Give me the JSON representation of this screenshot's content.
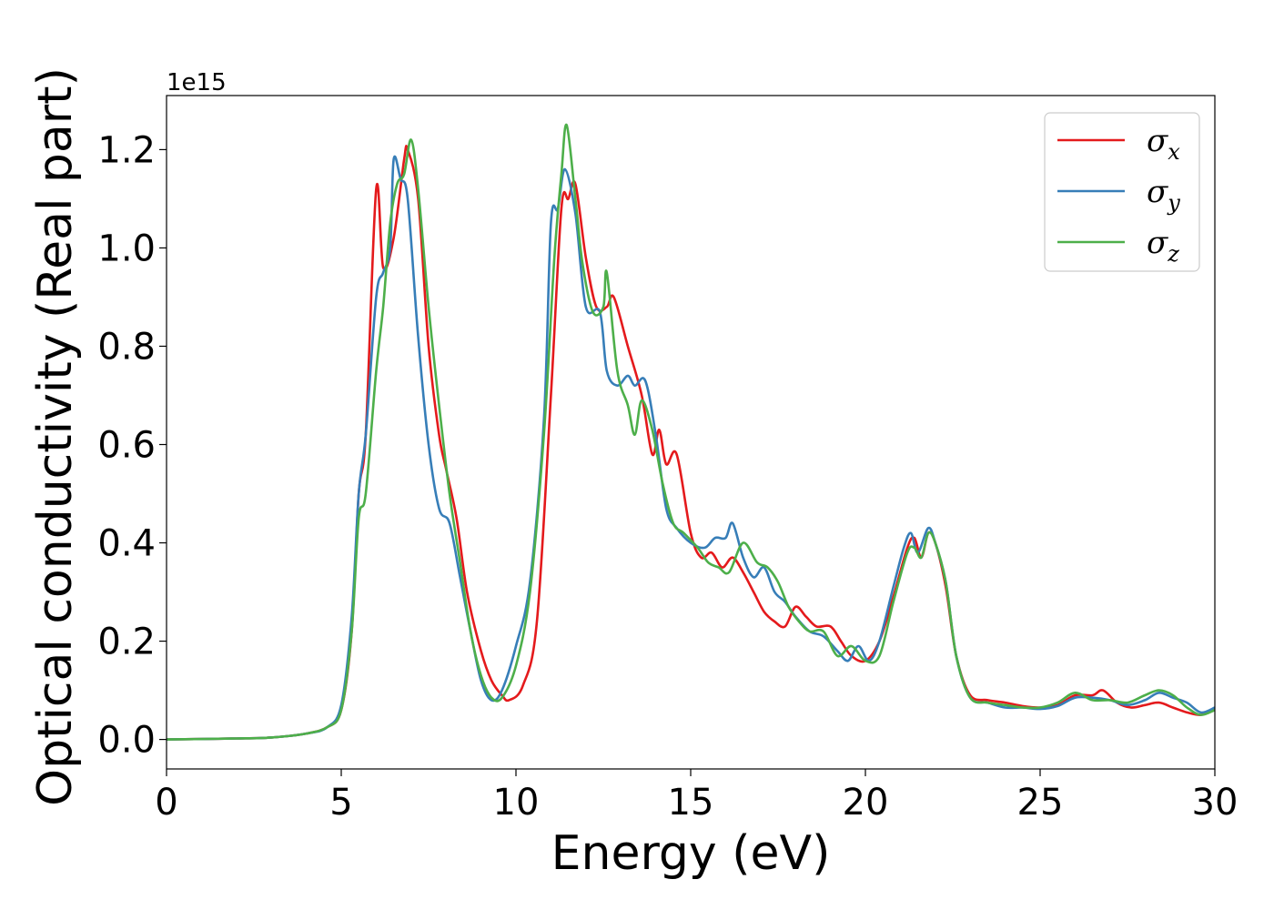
{
  "chart_data": {
    "type": "line",
    "xlabel": "Energy (eV)",
    "ylabel": "Optical conductivity (Real part)",
    "y_offset_text": "1e15",
    "xlim": [
      0,
      30
    ],
    "ylim": [
      -0.06,
      1.31
    ],
    "x_ticks": [
      0,
      5,
      10,
      15,
      20,
      25,
      30
    ],
    "x_tick_labels": [
      "0",
      "5",
      "10",
      "15",
      "20",
      "25",
      "30"
    ],
    "y_ticks": [
      0.0,
      0.2,
      0.4,
      0.6,
      0.8,
      1.0,
      1.2
    ],
    "y_tick_labels": [
      "0.0",
      "0.2",
      "0.4",
      "0.6",
      "0.8",
      "1.0",
      "1.2"
    ],
    "grid": false,
    "legend_position": "top-right",
    "series": [
      {
        "name_base": "σ",
        "name_sub": "x",
        "color": "#e41a1c",
        "points": [
          [
            0,
            0
          ],
          [
            2,
            0.002
          ],
          [
            3,
            0.004
          ],
          [
            4,
            0.012
          ],
          [
            4.6,
            0.025
          ],
          [
            5,
            0.06
          ],
          [
            5.3,
            0.22
          ],
          [
            5.5,
            0.5
          ],
          [
            5.7,
            0.62
          ],
          [
            6.0,
            1.12
          ],
          [
            6.2,
            0.96
          ],
          [
            6.5,
            1.02
          ],
          [
            6.8,
            1.18
          ],
          [
            6.9,
            1.2
          ],
          [
            7.2,
            1.1
          ],
          [
            7.5,
            0.8
          ],
          [
            7.8,
            0.62
          ],
          [
            8.0,
            0.55
          ],
          [
            8.3,
            0.45
          ],
          [
            8.6,
            0.3
          ],
          [
            9.0,
            0.18
          ],
          [
            9.3,
            0.12
          ],
          [
            9.6,
            0.09
          ],
          [
            9.8,
            0.08
          ],
          [
            10.2,
            0.11
          ],
          [
            10.6,
            0.24
          ],
          [
            11.0,
            0.7
          ],
          [
            11.3,
            1.08
          ],
          [
            11.5,
            1.1
          ],
          [
            11.7,
            1.13
          ],
          [
            12.0,
            0.98
          ],
          [
            12.3,
            0.88
          ],
          [
            12.6,
            0.88
          ],
          [
            12.8,
            0.9
          ],
          [
            13.2,
            0.8
          ],
          [
            13.6,
            0.7
          ],
          [
            13.9,
            0.58
          ],
          [
            14.1,
            0.63
          ],
          [
            14.3,
            0.56
          ],
          [
            14.6,
            0.58
          ],
          [
            15.0,
            0.42
          ],
          [
            15.3,
            0.37
          ],
          [
            15.6,
            0.38
          ],
          [
            15.9,
            0.35
          ],
          [
            16.2,
            0.37
          ],
          [
            16.5,
            0.34
          ],
          [
            16.8,
            0.3
          ],
          [
            17.1,
            0.26
          ],
          [
            17.4,
            0.24
          ],
          [
            17.7,
            0.23
          ],
          [
            18.0,
            0.27
          ],
          [
            18.3,
            0.25
          ],
          [
            18.6,
            0.23
          ],
          [
            19.0,
            0.23
          ],
          [
            19.3,
            0.2
          ],
          [
            19.6,
            0.17
          ],
          [
            20.0,
            0.16
          ],
          [
            20.4,
            0.2
          ],
          [
            20.8,
            0.29
          ],
          [
            21.2,
            0.39
          ],
          [
            21.4,
            0.41
          ],
          [
            21.6,
            0.37
          ],
          [
            21.8,
            0.42
          ],
          [
            22.0,
            0.4
          ],
          [
            22.3,
            0.31
          ],
          [
            22.6,
            0.17
          ],
          [
            23.0,
            0.09
          ],
          [
            23.5,
            0.08
          ],
          [
            24.0,
            0.075
          ],
          [
            24.5,
            0.068
          ],
          [
            25.0,
            0.065
          ],
          [
            25.5,
            0.07
          ],
          [
            26.0,
            0.09
          ],
          [
            26.5,
            0.09
          ],
          [
            26.8,
            0.1
          ],
          [
            27.2,
            0.075
          ],
          [
            27.6,
            0.065
          ],
          [
            28.0,
            0.07
          ],
          [
            28.4,
            0.075
          ],
          [
            28.8,
            0.065
          ],
          [
            29.2,
            0.055
          ],
          [
            29.6,
            0.05
          ],
          [
            30.0,
            0.06
          ]
        ]
      },
      {
        "name_base": "σ",
        "name_sub": "y",
        "color": "#377eb8",
        "points": [
          [
            0,
            0
          ],
          [
            2,
            0.002
          ],
          [
            3,
            0.004
          ],
          [
            4,
            0.012
          ],
          [
            4.6,
            0.025
          ],
          [
            5,
            0.07
          ],
          [
            5.3,
            0.25
          ],
          [
            5.5,
            0.5
          ],
          [
            5.7,
            0.62
          ],
          [
            6.0,
            0.9
          ],
          [
            6.2,
            0.95
          ],
          [
            6.4,
            1.0
          ],
          [
            6.5,
            1.18
          ],
          [
            6.7,
            1.14
          ],
          [
            6.9,
            1.1
          ],
          [
            7.2,
            0.82
          ],
          [
            7.5,
            0.6
          ],
          [
            7.8,
            0.47
          ],
          [
            8.1,
            0.44
          ],
          [
            8.4,
            0.33
          ],
          [
            8.7,
            0.22
          ],
          [
            9.0,
            0.12
          ],
          [
            9.3,
            0.08
          ],
          [
            9.6,
            0.1
          ],
          [
            10.0,
            0.19
          ],
          [
            10.4,
            0.32
          ],
          [
            10.8,
            0.65
          ],
          [
            11.0,
            1.05
          ],
          [
            11.2,
            1.08
          ],
          [
            11.4,
            1.16
          ],
          [
            11.7,
            1.07
          ],
          [
            12.0,
            0.88
          ],
          [
            12.4,
            0.87
          ],
          [
            12.6,
            0.75
          ],
          [
            12.9,
            0.72
          ],
          [
            13.2,
            0.74
          ],
          [
            13.4,
            0.72
          ],
          [
            13.7,
            0.73
          ],
          [
            14.0,
            0.62
          ],
          [
            14.3,
            0.47
          ],
          [
            14.6,
            0.43
          ],
          [
            15.0,
            0.4
          ],
          [
            15.4,
            0.39
          ],
          [
            15.7,
            0.41
          ],
          [
            16.0,
            0.41
          ],
          [
            16.2,
            0.44
          ],
          [
            16.5,
            0.37
          ],
          [
            16.8,
            0.33
          ],
          [
            17.1,
            0.35
          ],
          [
            17.4,
            0.3
          ],
          [
            17.7,
            0.28
          ],
          [
            18.0,
            0.25
          ],
          [
            18.4,
            0.22
          ],
          [
            18.8,
            0.21
          ],
          [
            19.2,
            0.18
          ],
          [
            19.5,
            0.16
          ],
          [
            19.8,
            0.19
          ],
          [
            20.1,
            0.16
          ],
          [
            20.4,
            0.2
          ],
          [
            20.8,
            0.31
          ],
          [
            21.1,
            0.39
          ],
          [
            21.3,
            0.42
          ],
          [
            21.5,
            0.38
          ],
          [
            21.8,
            0.43
          ],
          [
            22.0,
            0.4
          ],
          [
            22.3,
            0.32
          ],
          [
            22.6,
            0.17
          ],
          [
            23.0,
            0.085
          ],
          [
            23.5,
            0.075
          ],
          [
            24.0,
            0.065
          ],
          [
            24.5,
            0.065
          ],
          [
            25.0,
            0.062
          ],
          [
            25.5,
            0.068
          ],
          [
            26.0,
            0.085
          ],
          [
            26.5,
            0.085
          ],
          [
            27.0,
            0.08
          ],
          [
            27.5,
            0.07
          ],
          [
            28.0,
            0.08
          ],
          [
            28.4,
            0.095
          ],
          [
            28.8,
            0.085
          ],
          [
            29.2,
            0.075
          ],
          [
            29.6,
            0.055
          ],
          [
            30.0,
            0.065
          ]
        ]
      },
      {
        "name_base": "σ",
        "name_sub": "z",
        "color": "#4daf4a",
        "points": [
          [
            0,
            0
          ],
          [
            2,
            0.002
          ],
          [
            3,
            0.004
          ],
          [
            4,
            0.012
          ],
          [
            4.6,
            0.025
          ],
          [
            5,
            0.06
          ],
          [
            5.3,
            0.22
          ],
          [
            5.5,
            0.45
          ],
          [
            5.7,
            0.5
          ],
          [
            6.0,
            0.75
          ],
          [
            6.2,
            0.88
          ],
          [
            6.4,
            1.05
          ],
          [
            6.6,
            1.13
          ],
          [
            6.8,
            1.15
          ],
          [
            7.0,
            1.22
          ],
          [
            7.2,
            1.12
          ],
          [
            7.5,
            0.88
          ],
          [
            7.8,
            0.68
          ],
          [
            8.1,
            0.5
          ],
          [
            8.4,
            0.36
          ],
          [
            8.7,
            0.22
          ],
          [
            9.0,
            0.13
          ],
          [
            9.3,
            0.085
          ],
          [
            9.6,
            0.085
          ],
          [
            10.0,
            0.15
          ],
          [
            10.4,
            0.3
          ],
          [
            10.8,
            0.62
          ],
          [
            11.1,
            0.98
          ],
          [
            11.3,
            1.15
          ],
          [
            11.45,
            1.25
          ],
          [
            11.7,
            1.1
          ],
          [
            11.9,
            0.97
          ],
          [
            12.2,
            0.87
          ],
          [
            12.5,
            0.88
          ],
          [
            12.6,
            0.95
          ],
          [
            12.9,
            0.75
          ],
          [
            13.2,
            0.68
          ],
          [
            13.4,
            0.62
          ],
          [
            13.6,
            0.69
          ],
          [
            13.9,
            0.63
          ],
          [
            14.2,
            0.52
          ],
          [
            14.5,
            0.44
          ],
          [
            14.8,
            0.42
          ],
          [
            15.2,
            0.39
          ],
          [
            15.5,
            0.36
          ],
          [
            15.8,
            0.35
          ],
          [
            16.1,
            0.34
          ],
          [
            16.5,
            0.4
          ],
          [
            16.9,
            0.36
          ],
          [
            17.2,
            0.35
          ],
          [
            17.5,
            0.32
          ],
          [
            17.8,
            0.27
          ],
          [
            18.1,
            0.24
          ],
          [
            18.4,
            0.22
          ],
          [
            18.8,
            0.22
          ],
          [
            19.2,
            0.17
          ],
          [
            19.6,
            0.19
          ],
          [
            20.0,
            0.16
          ],
          [
            20.4,
            0.17
          ],
          [
            20.8,
            0.28
          ],
          [
            21.2,
            0.38
          ],
          [
            21.4,
            0.39
          ],
          [
            21.6,
            0.37
          ],
          [
            21.8,
            0.42
          ],
          [
            22.0,
            0.4
          ],
          [
            22.3,
            0.32
          ],
          [
            22.6,
            0.17
          ],
          [
            23.0,
            0.085
          ],
          [
            23.5,
            0.075
          ],
          [
            24.0,
            0.07
          ],
          [
            24.5,
            0.065
          ],
          [
            25.0,
            0.065
          ],
          [
            25.5,
            0.075
          ],
          [
            26.0,
            0.095
          ],
          [
            26.5,
            0.08
          ],
          [
            27.0,
            0.08
          ],
          [
            27.5,
            0.075
          ],
          [
            28.0,
            0.09
          ],
          [
            28.4,
            0.1
          ],
          [
            28.8,
            0.09
          ],
          [
            29.2,
            0.065
          ],
          [
            29.6,
            0.05
          ],
          [
            30.0,
            0.06
          ]
        ]
      }
    ]
  }
}
